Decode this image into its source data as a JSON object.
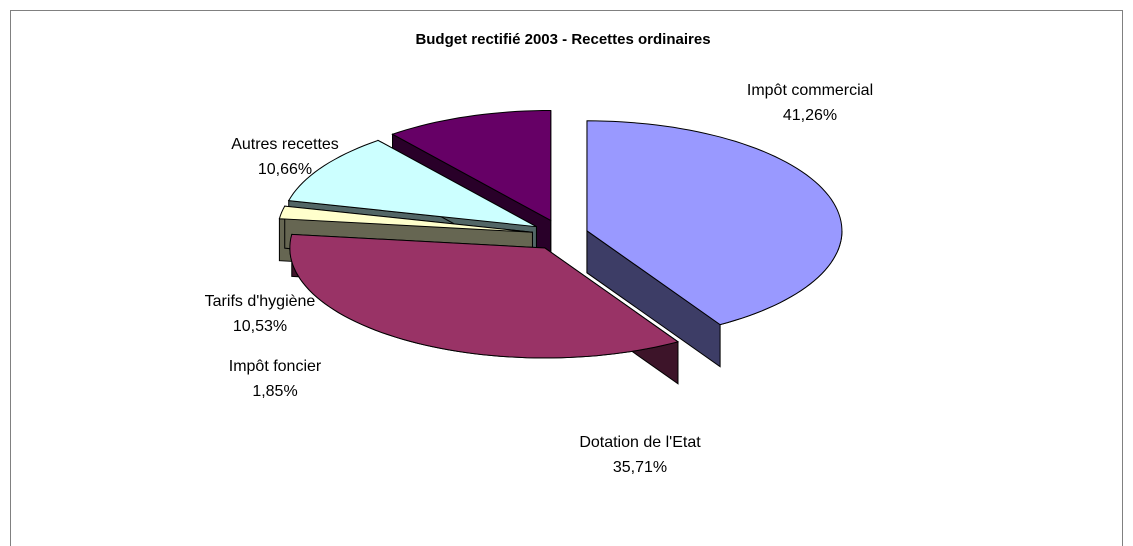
{
  "chart_data": {
    "type": "pie3d",
    "title": "Budget rectifié 2003 - Recettes ordinaires",
    "categories": [
      "Impôt commercial",
      "Dotation de l'Etat",
      "Impôt foncier",
      "Tarifs d'hygiène",
      "Autres recettes"
    ],
    "values": [
      41.26,
      35.71,
      1.85,
      10.53,
      10.66
    ],
    "value_labels": [
      "41,26%",
      "35,71%",
      "1,85%",
      "10,53%",
      "10,66%"
    ],
    "colors": [
      "#9999ff",
      "#993366",
      "#ffffcc",
      "#ccffff",
      "#660066"
    ]
  }
}
